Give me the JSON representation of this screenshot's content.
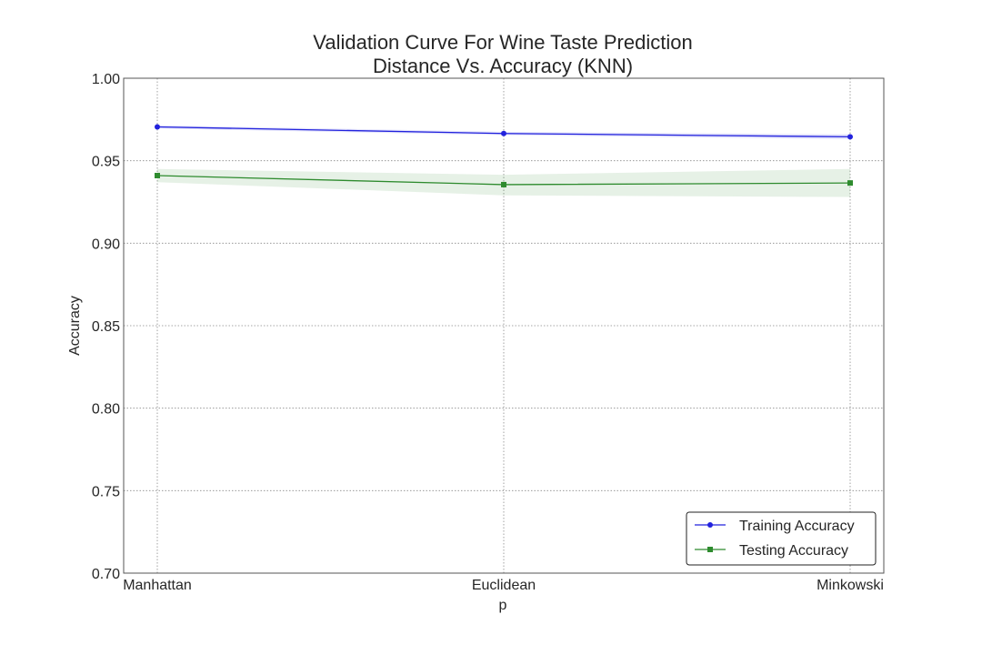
{
  "chart_data": {
    "type": "line",
    "title_lines": [
      "Validation Curve For Wine Taste Prediction",
      "Distance Vs. Accuracy (KNN)"
    ],
    "xlabel": "p",
    "ylabel": "Accuracy",
    "categories": [
      "Manhattan",
      "Euclidean",
      "Minkowski"
    ],
    "ylim": [
      0.7,
      1.0
    ],
    "yticks": [
      "0.70",
      "0.75",
      "0.80",
      "0.85",
      "0.90",
      "0.95",
      "1.00"
    ],
    "grid": true,
    "legend_position": "lower-right",
    "series": [
      {
        "name": "Training Accuracy",
        "color": "#2222dd",
        "marker": "circle",
        "values": [
          0.9705,
          0.9665,
          0.9645
        ],
        "lower": [
          0.9695,
          0.9655,
          0.963
        ],
        "upper": [
          0.9715,
          0.9675,
          0.966
        ]
      },
      {
        "name": "Testing Accuracy",
        "color": "#2e8b2e",
        "marker": "square",
        "values": [
          0.941,
          0.9355,
          0.9365
        ],
        "lower": [
          0.937,
          0.929,
          0.928
        ],
        "upper": [
          0.945,
          0.9415,
          0.945
        ]
      }
    ]
  }
}
